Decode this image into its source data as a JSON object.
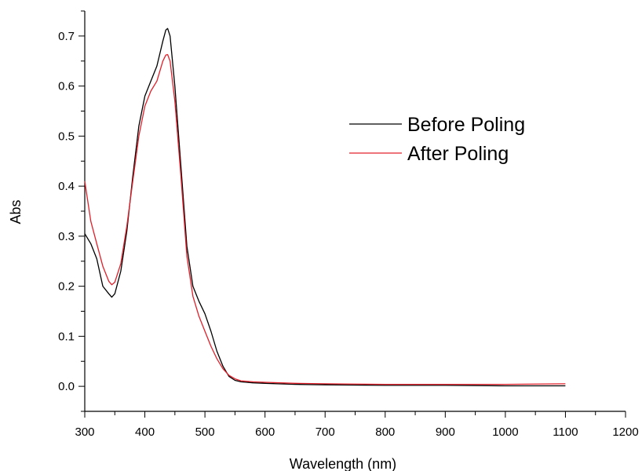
{
  "chart_data": {
    "type": "line",
    "title": "",
    "xlabel": "Wavelength (nm)",
    "ylabel": "Abs",
    "xlim": [
      300,
      1200
    ],
    "ylim": [
      -0.05,
      0.75
    ],
    "x_ticks": [
      300,
      400,
      500,
      600,
      700,
      800,
      900,
      1000,
      1100,
      1200
    ],
    "y_ticks": [
      0.0,
      0.1,
      0.2,
      0.3,
      0.4,
      0.5,
      0.6,
      0.7
    ],
    "y_tick_labels": [
      "0.0",
      "0.1",
      "0.2",
      "0.3",
      "0.4",
      "0.5",
      "0.6",
      "0.7"
    ],
    "grid": false,
    "legend_position": "upper-right",
    "series": [
      {
        "name": "Before Poling",
        "color": "#000000",
        "points": [
          [
            300,
            0.305
          ],
          [
            310,
            0.285
          ],
          [
            320,
            0.255
          ],
          [
            330,
            0.2
          ],
          [
            340,
            0.185
          ],
          [
            345,
            0.178
          ],
          [
            350,
            0.185
          ],
          [
            360,
            0.23
          ],
          [
            370,
            0.31
          ],
          [
            380,
            0.42
          ],
          [
            390,
            0.52
          ],
          [
            400,
            0.58
          ],
          [
            410,
            0.61
          ],
          [
            420,
            0.64
          ],
          [
            430,
            0.69
          ],
          [
            435,
            0.712
          ],
          [
            438,
            0.715
          ],
          [
            442,
            0.7
          ],
          [
            450,
            0.6
          ],
          [
            460,
            0.44
          ],
          [
            470,
            0.28
          ],
          [
            480,
            0.2
          ],
          [
            490,
            0.17
          ],
          [
            500,
            0.145
          ],
          [
            510,
            0.11
          ],
          [
            520,
            0.07
          ],
          [
            530,
            0.04
          ],
          [
            540,
            0.02
          ],
          [
            550,
            0.012
          ],
          [
            560,
            0.009
          ],
          [
            580,
            0.007
          ],
          [
            600,
            0.006
          ],
          [
            650,
            0.004
          ],
          [
            700,
            0.003
          ],
          [
            800,
            0.002
          ],
          [
            900,
            0.002
          ],
          [
            1000,
            0.001
          ],
          [
            1100,
            0.001
          ]
        ]
      },
      {
        "name": "After Poling",
        "color": "#e0202a",
        "points": [
          [
            300,
            0.41
          ],
          [
            310,
            0.33
          ],
          [
            320,
            0.285
          ],
          [
            330,
            0.24
          ],
          [
            340,
            0.21
          ],
          [
            345,
            0.203
          ],
          [
            350,
            0.208
          ],
          [
            360,
            0.245
          ],
          [
            370,
            0.32
          ],
          [
            380,
            0.41
          ],
          [
            390,
            0.5
          ],
          [
            400,
            0.56
          ],
          [
            410,
            0.59
          ],
          [
            420,
            0.61
          ],
          [
            430,
            0.65
          ],
          [
            435,
            0.662
          ],
          [
            438,
            0.663
          ],
          [
            442,
            0.65
          ],
          [
            450,
            0.57
          ],
          [
            460,
            0.42
          ],
          [
            470,
            0.26
          ],
          [
            480,
            0.18
          ],
          [
            490,
            0.14
          ],
          [
            500,
            0.11
          ],
          [
            510,
            0.08
          ],
          [
            520,
            0.055
          ],
          [
            530,
            0.035
          ],
          [
            540,
            0.022
          ],
          [
            550,
            0.015
          ],
          [
            560,
            0.011
          ],
          [
            580,
            0.009
          ],
          [
            600,
            0.008
          ],
          [
            650,
            0.006
          ],
          [
            700,
            0.005
          ],
          [
            800,
            0.004
          ],
          [
            900,
            0.004
          ],
          [
            1000,
            0.004
          ],
          [
            1100,
            0.005
          ]
        ]
      }
    ]
  }
}
